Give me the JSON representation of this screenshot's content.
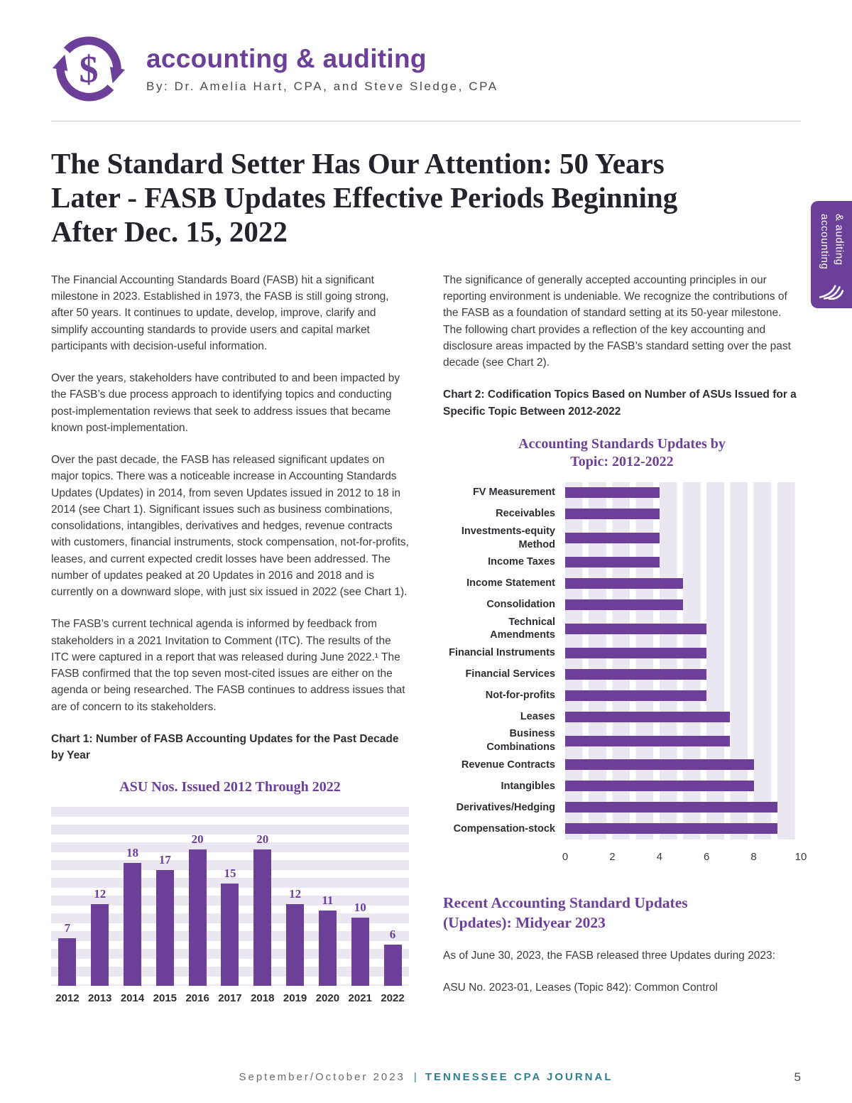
{
  "header": {
    "title": "accounting & auditing",
    "byline": "By: Dr. Amelia Hart, CPA, and Steve Sledge, CPA"
  },
  "side_tab": {
    "line1": "accounting",
    "line2": "& auditing"
  },
  "article": {
    "title": "The Standard Setter Has Our Attention: 50 Years Later - FASB Updates Effective Periods Beginning After Dec. 15, 2022"
  },
  "left_column": {
    "paragraphs": [
      "The Financial Accounting Standards Board (FASB) hit a significant milestone in 2023. Established in 1973, the FASB is still going strong, after 50 years. It continues to update, develop, improve, clarify and simplify accounting standards to provide users and capital market participants with decision-useful information.",
      "Over the years, stakeholders have contributed to and been impacted by the FASB’s due process approach to identifying topics and conducting post-implementation reviews that seek to address issues that became known post-implementation.",
      "Over the past decade, the FASB has released significant updates on major topics. There was a noticeable increase in Accounting Standards Updates (Updates) in 2014, from seven Updates issued in 2012 to 18 in 2014 (see Chart 1). Significant issues such as business combinations, consolidations, intangibles, derivatives and hedges, revenue contracts with customers, financial instruments, stock compensation, not-for-profits, leases, and current expected credit losses have been addressed. The number of updates peaked at 20 Updates in 2016 and 2018 and is currently on a downward slope, with just six issued in 2022 (see Chart 1).",
      "The FASB’s current technical agenda is informed by feedback from stakeholders in a 2021 Invitation to Comment (ITC). The results of the ITC were captured in a report that was released during June 2022.¹ The FASB confirmed that the top seven most-cited issues are either on the agenda or being researched. The FASB continues to address issues that are of concern to its stakeholders."
    ],
    "chart1_caption": "Chart 1: Number of FASB Accounting Updates for the Past Decade by Year"
  },
  "right_column": {
    "paragraph": "The significance of generally accepted accounting principles in our reporting environment is undeniable. We recognize the contributions of the FASB as a foundation of standard setting at its 50-year milestone. The following chart provides a reflection of the key accounting and disclosure areas impacted by the FASB’s standard setting over the past decade (see Chart 2).",
    "chart2_caption": "Chart 2: Codification Topics Based on Number of ASUs Issued for a Specific Topic Between 2012-2022",
    "section_heading": "Recent Accounting Standard Updates (Updates): Midyear 2023",
    "paragraphs": [
      "As of June 30, 2023, the FASB released three Updates during 2023:",
      "ASU No. 2023-01, Leases (Topic 842): Common Control"
    ]
  },
  "footer": {
    "issue": "September/October 2023",
    "separator": "|",
    "journal": "TENNESSEE CPA JOURNAL",
    "page_number": "5"
  },
  "colors": {
    "purple": "#6C3F99",
    "teal": "#2F7F8F",
    "stripe": "#EAE7F1"
  },
  "chart_data": [
    {
      "type": "bar",
      "title": "ASU Nos. Issued 2012 Through 2022",
      "categories": [
        "2012",
        "2013",
        "2014",
        "2015",
        "2016",
        "2017",
        "2018",
        "2019",
        "2020",
        "2021",
        "2022"
      ],
      "values": [
        7,
        12,
        18,
        17,
        20,
        15,
        20,
        12,
        11,
        10,
        6
      ],
      "xlabel": "",
      "ylabel": "",
      "ylim": [
        0,
        20
      ],
      "grid": "horizontal-bands",
      "bar_color": "#6C3F99",
      "value_labels": true
    },
    {
      "type": "bar",
      "orientation": "horizontal",
      "title": "Accounting Standards Updates by Topic: 2012-2022",
      "categories": [
        "FV Measurement",
        "Receivables",
        "Investments-equity Method",
        "Income Taxes",
        "Income Statement",
        "Consolidation",
        "Technical Amendments",
        "Financial Instruments",
        "Financial Services",
        "Not-for-profits",
        "Leases",
        "Business Combinations",
        "Revenue Contracts",
        "Intangibles",
        "Derivatives/Hedging",
        "Compensation-stock"
      ],
      "values": [
        4,
        4,
        4,
        4,
        5,
        5,
        6,
        6,
        6,
        6,
        7,
        7,
        8,
        8,
        9,
        9
      ],
      "xlabel": "",
      "ylabel": "",
      "xlim": [
        0,
        10
      ],
      "xticks": [
        0,
        2,
        4,
        6,
        8,
        10
      ],
      "grid": "vertical-bands",
      "bar_color": "#6C3F99",
      "value_labels": false
    }
  ]
}
